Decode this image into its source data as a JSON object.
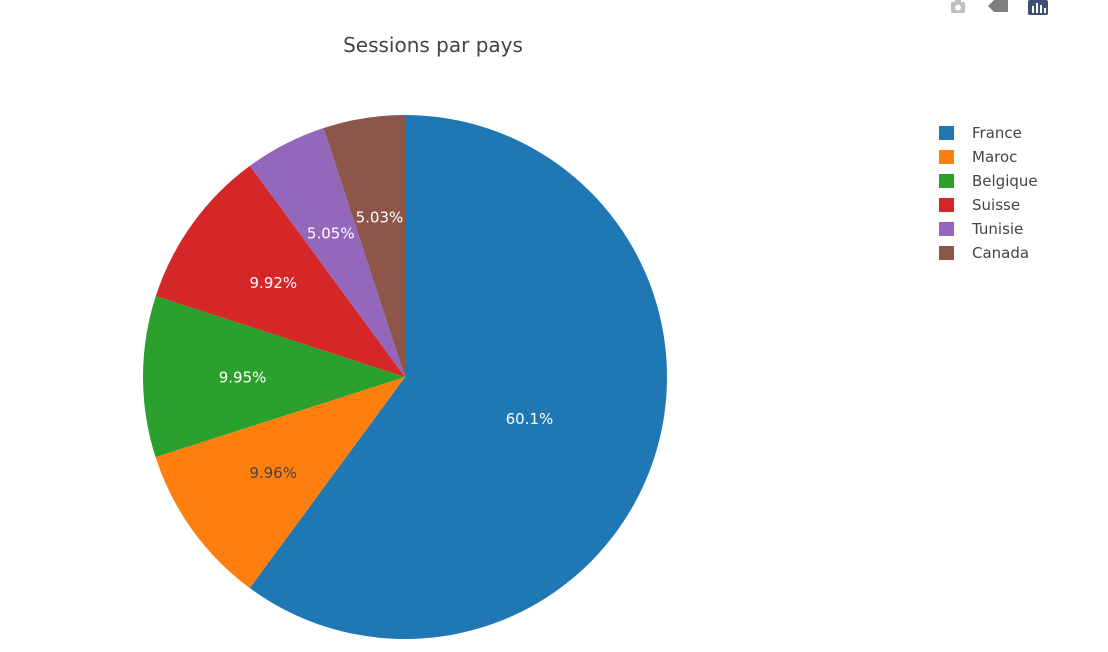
{
  "chart_data": {
    "type": "pie",
    "title": "Sessions par pays",
    "labels": [
      "France",
      "Maroc",
      "Belgique",
      "Suisse",
      "Tunisie",
      "Canada"
    ],
    "values": [
      60.1,
      9.96,
      9.95,
      9.92,
      5.05,
      5.03
    ],
    "text": [
      "60.1%",
      "9.96%",
      "9.95%",
      "9.92%",
      "5.05%",
      "5.03%"
    ],
    "colors": [
      "#1f77b4",
      "#ff7f0e",
      "#2ca02c",
      "#d62728",
      "#9467bd",
      "#8c564b"
    ],
    "direction": "clockwise",
    "rotation_start": "top",
    "legend_position": "top-right"
  },
  "modebar": {
    "icons": [
      "camera-icon",
      "tag-icon",
      "plotly-logo-icon"
    ]
  }
}
